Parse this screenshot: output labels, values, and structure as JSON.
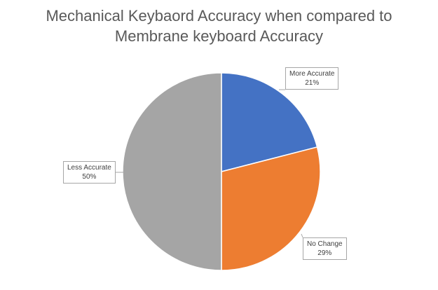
{
  "chart_data": {
    "type": "pie",
    "title_lines": [
      "Mechanical Keybaord Accuracy when compared to",
      "Membrane keyboard Accuracy"
    ],
    "categories": [
      "More Accurate",
      "No Change",
      "Less Accurate"
    ],
    "values": [
      21,
      29,
      50
    ],
    "value_labels": [
      "21%",
      "29%",
      "50%"
    ],
    "colors": [
      "#4472c4",
      "#ed7d31",
      "#a5a5a5"
    ],
    "legend": "none",
    "start_angle_deg": 0,
    "direction": "clockwise"
  }
}
